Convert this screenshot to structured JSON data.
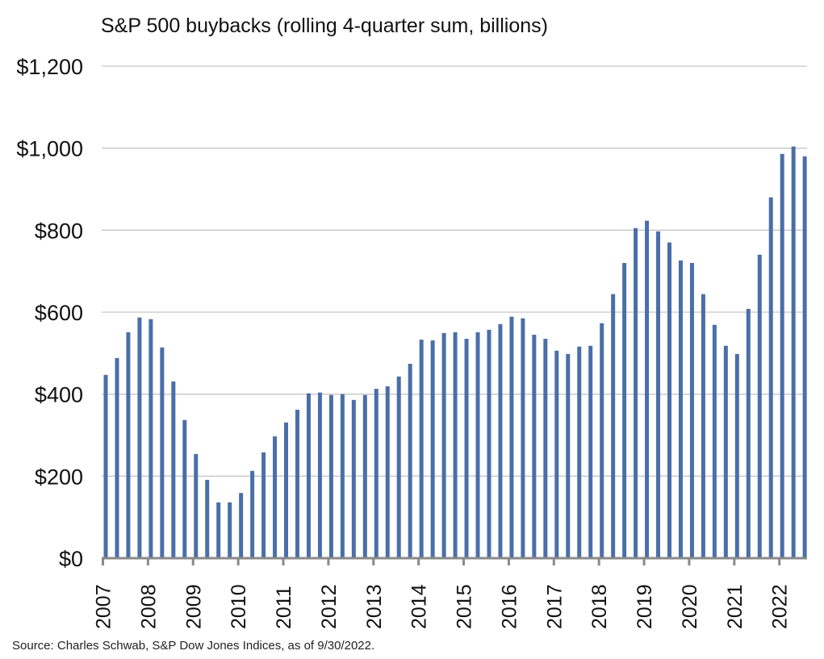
{
  "chart_data": {
    "type": "bar",
    "title": "S&P 500 buybacks (rolling 4-quarter sum, billions)",
    "xlabel": "",
    "ylabel": "",
    "ylim": [
      0,
      1200
    ],
    "yticks": [
      0,
      200,
      400,
      600,
      800,
      1000,
      1200
    ],
    "ytick_labels": [
      "$0",
      "$200",
      "$400",
      "$600",
      "$800",
      "$1,000",
      "$1,200"
    ],
    "grid": true,
    "legend": "none",
    "bar_color": "#4a6ea8",
    "xtick_labels": [
      "2007",
      "2008",
      "2009",
      "2010",
      "2011",
      "2012",
      "2013",
      "2014",
      "2015",
      "2016",
      "2017",
      "2018",
      "2019",
      "2020",
      "2021",
      "2022"
    ],
    "categories": [
      "2007Q1",
      "2007Q2",
      "2007Q3",
      "2007Q4",
      "2008Q1",
      "2008Q2",
      "2008Q3",
      "2008Q4",
      "2009Q1",
      "2009Q2",
      "2009Q3",
      "2009Q4",
      "2010Q1",
      "2010Q2",
      "2010Q3",
      "2010Q4",
      "2011Q1",
      "2011Q2",
      "2011Q3",
      "2011Q4",
      "2012Q1",
      "2012Q2",
      "2012Q3",
      "2012Q4",
      "2013Q1",
      "2013Q2",
      "2013Q3",
      "2013Q4",
      "2014Q1",
      "2014Q2",
      "2014Q3",
      "2014Q4",
      "2015Q1",
      "2015Q2",
      "2015Q3",
      "2015Q4",
      "2016Q1",
      "2016Q2",
      "2016Q3",
      "2016Q4",
      "2017Q1",
      "2017Q2",
      "2017Q3",
      "2017Q4",
      "2018Q1",
      "2018Q2",
      "2018Q3",
      "2018Q4",
      "2019Q1",
      "2019Q2",
      "2019Q3",
      "2019Q4",
      "2020Q1",
      "2020Q2",
      "2020Q3",
      "2020Q4",
      "2021Q1",
      "2021Q2",
      "2021Q3",
      "2021Q4",
      "2022Q1",
      "2022Q2",
      "2022Q3"
    ],
    "values": [
      447,
      488,
      551,
      587,
      583,
      514,
      431,
      337,
      254,
      191,
      136,
      136,
      159,
      213,
      258,
      297,
      331,
      362,
      402,
      404,
      398,
      400,
      386,
      398,
      413,
      419,
      443,
      474,
      533,
      531,
      549,
      551,
      535,
      551,
      557,
      571,
      589,
      585,
      545,
      535,
      506,
      498,
      516,
      518,
      573,
      644,
      720,
      805,
      823,
      797,
      770,
      726,
      720,
      644,
      569,
      518,
      498,
      608,
      740,
      880,
      986,
      1004,
      980
    ],
    "source": "Source: Charles Schwab, S&P Dow Jones Indices, as of 9/30/2022."
  }
}
